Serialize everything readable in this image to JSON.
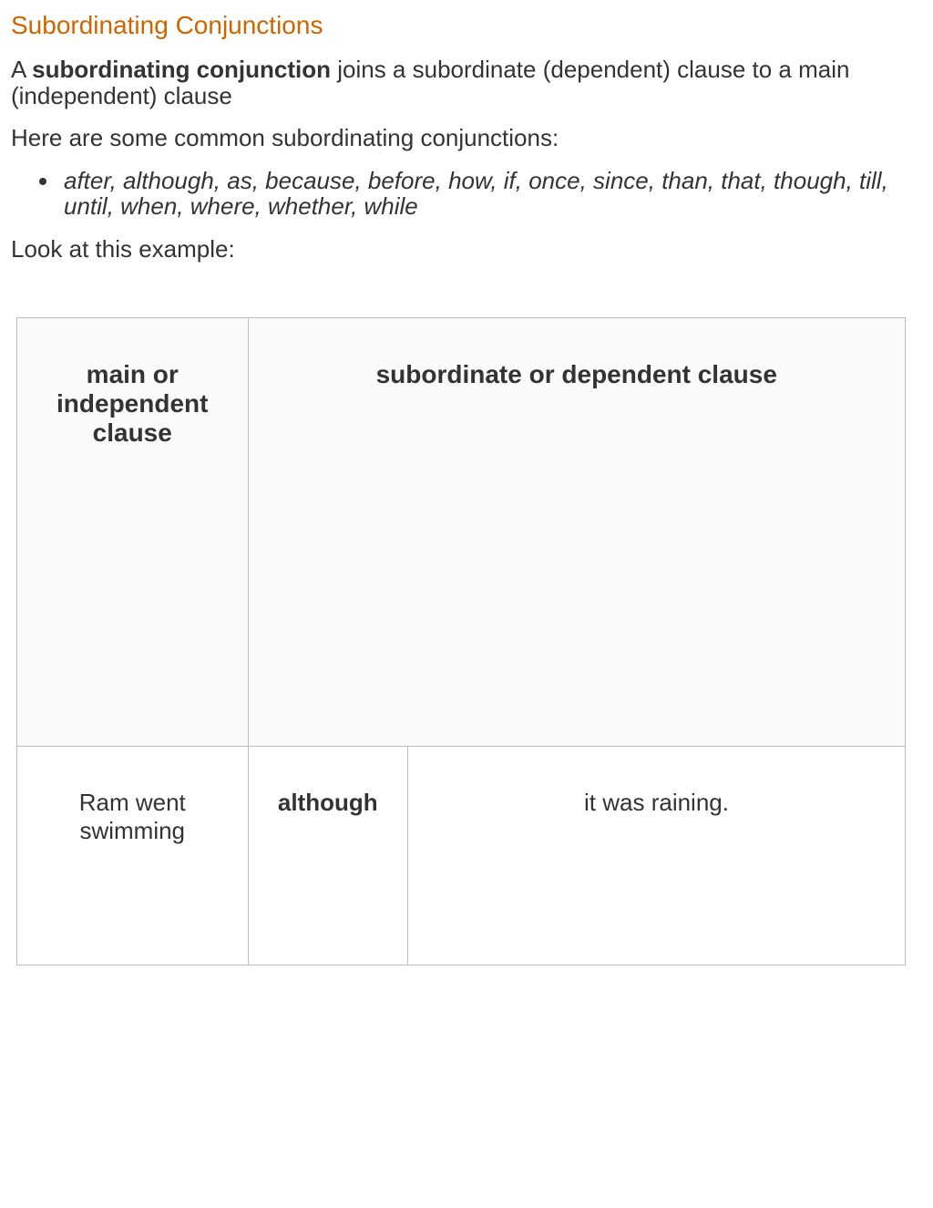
{
  "heading": "Subordinating Conjunctions",
  "intro": {
    "prefix": "A ",
    "bold": "subordinating conjunction",
    "suffix": " joins a subordinate (dependent) clause to a main (independent) clause"
  },
  "list_intro": "Here are some common subordinating conjunctions:",
  "conjunctions": "after, although, as, because, before, how, if, once, since, than, that, though, till, until, when, where, whether, while",
  "example_intro": "Look at this example:",
  "table": {
    "headers": {
      "main": "main or independent clause",
      "dependent": "subordinate or  dependent clause"
    },
    "row": {
      "main": "Ram went swimming",
      "conjunction": "although",
      "dependent": "it was raining."
    },
    "styling": {
      "border_color": "#bdbdbd",
      "header_bg": "#fafafa",
      "cell_bg": "#ffffff",
      "header_fontsize": 28,
      "cell_fontsize": 26
    }
  },
  "colors": {
    "heading": "#cc6600",
    "text": "#333333",
    "background": "#ffffff"
  },
  "typography": {
    "heading_fontsize": 28,
    "body_fontsize": 26,
    "font_family": "Arial"
  }
}
